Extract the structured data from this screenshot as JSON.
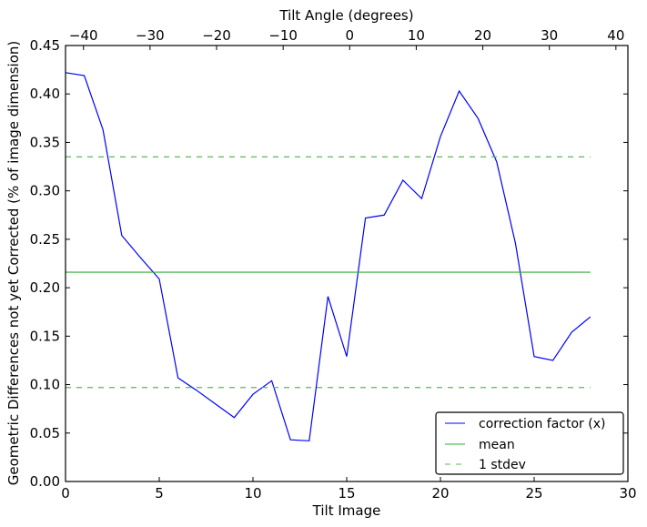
{
  "chart_data": {
    "type": "line",
    "xlabel": "Tilt Image",
    "ylabel": "Geometric Differences not yet Corrected (% of image dimension)",
    "top_xlabel": "Tilt Angle (degrees)",
    "xlim": [
      0,
      30
    ],
    "ylim": [
      0,
      0.45
    ],
    "top_xlim": [
      -42.7,
      41.8
    ],
    "xticks": [
      0,
      5,
      10,
      15,
      20,
      25,
      30
    ],
    "yticks": [
      "0.00",
      "0.05",
      "0.10",
      "0.15",
      "0.20",
      "0.25",
      "0.30",
      "0.35",
      "0.40",
      "0.45"
    ],
    "top_xticks": [
      -40,
      -30,
      -20,
      -10,
      0,
      10,
      20,
      30,
      40
    ],
    "top_xtick_labels": [
      "−40",
      "−30",
      "−20",
      "−10",
      "0",
      "10",
      "20",
      "30",
      "40"
    ],
    "grid": false,
    "legend_position": "lower-right",
    "series": [
      {
        "name": "correction factor (x)",
        "color": "#0000ff",
        "style": "solid",
        "x": [
          0,
          1,
          2,
          3,
          4,
          5,
          6,
          7,
          8,
          9,
          10,
          11,
          12,
          13,
          14,
          15,
          16,
          17,
          18,
          19,
          20,
          21,
          22,
          23,
          24,
          25,
          26,
          27,
          28
        ],
        "y": [
          0.422,
          0.419,
          0.363,
          0.254,
          0.231,
          0.209,
          0.107,
          0.094,
          0.08,
          0.066,
          0.09,
          0.104,
          0.043,
          0.042,
          0.191,
          0.129,
          0.272,
          0.275,
          0.311,
          0.292,
          0.356,
          0.403,
          0.375,
          0.33,
          0.246,
          0.129,
          0.125,
          0.154,
          0.17
        ]
      },
      {
        "name": "mean",
        "color": "#33aa33",
        "style": "solid",
        "x": [
          0,
          28
        ],
        "y": [
          0.216,
          0.216
        ]
      },
      {
        "name": "1 stdev",
        "color": "#55bb55",
        "style": "dashed",
        "x": [
          0,
          28
        ],
        "y": [
          0.335,
          0.335
        ]
      },
      {
        "name": "1 stdev (lower)",
        "color": "#55bb55",
        "style": "dashed",
        "x": [
          0,
          28
        ],
        "y": [
          0.097,
          0.097
        ]
      }
    ],
    "legend": [
      "correction factor (x)",
      "mean",
      "1 stdev"
    ]
  }
}
